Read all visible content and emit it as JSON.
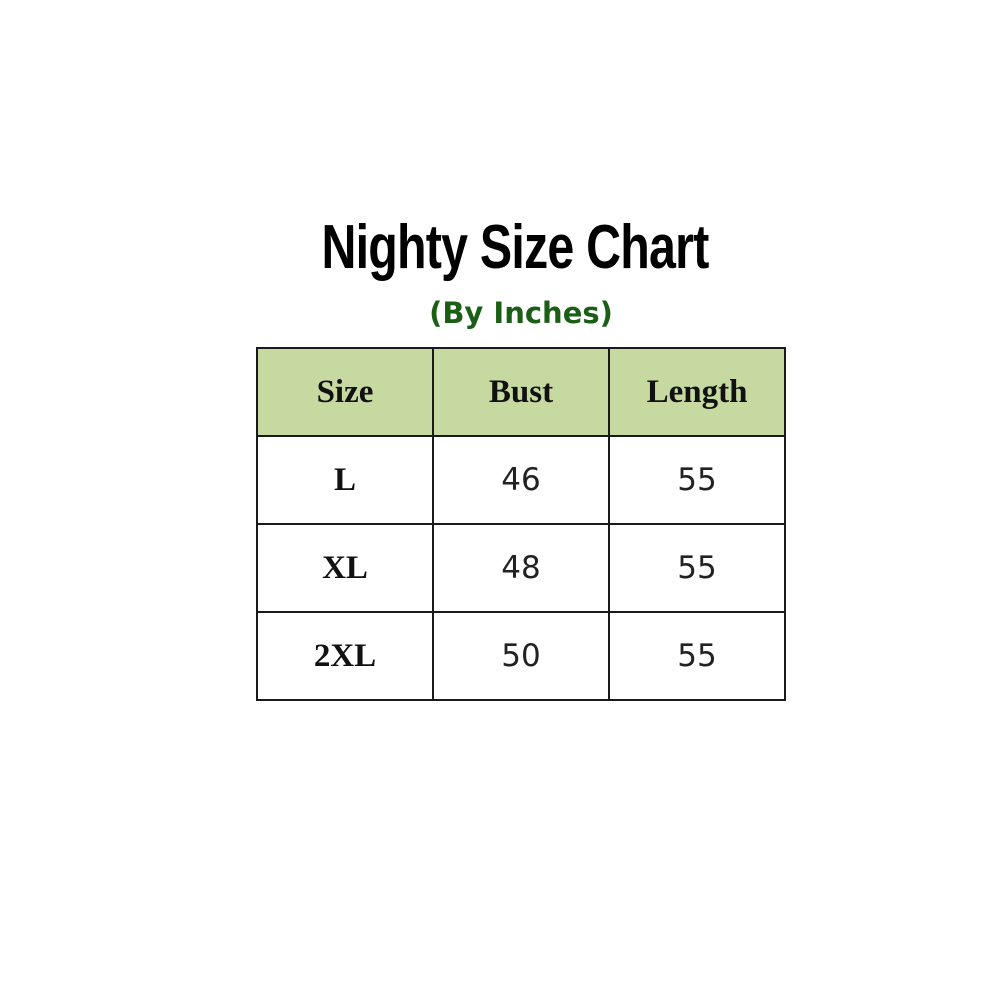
{
  "title": "Nighty Size Chart",
  "subtitle": "(By Inches)",
  "colors": {
    "header_bg": "#c5d9a0",
    "subtitle": "#1b5e16"
  },
  "table": {
    "headers": [
      "Size",
      "Bust",
      "Length"
    ],
    "rows": [
      [
        "L",
        "46",
        "55"
      ],
      [
        "XL",
        "48",
        "55"
      ],
      [
        "2XL",
        "50",
        "55"
      ]
    ]
  }
}
